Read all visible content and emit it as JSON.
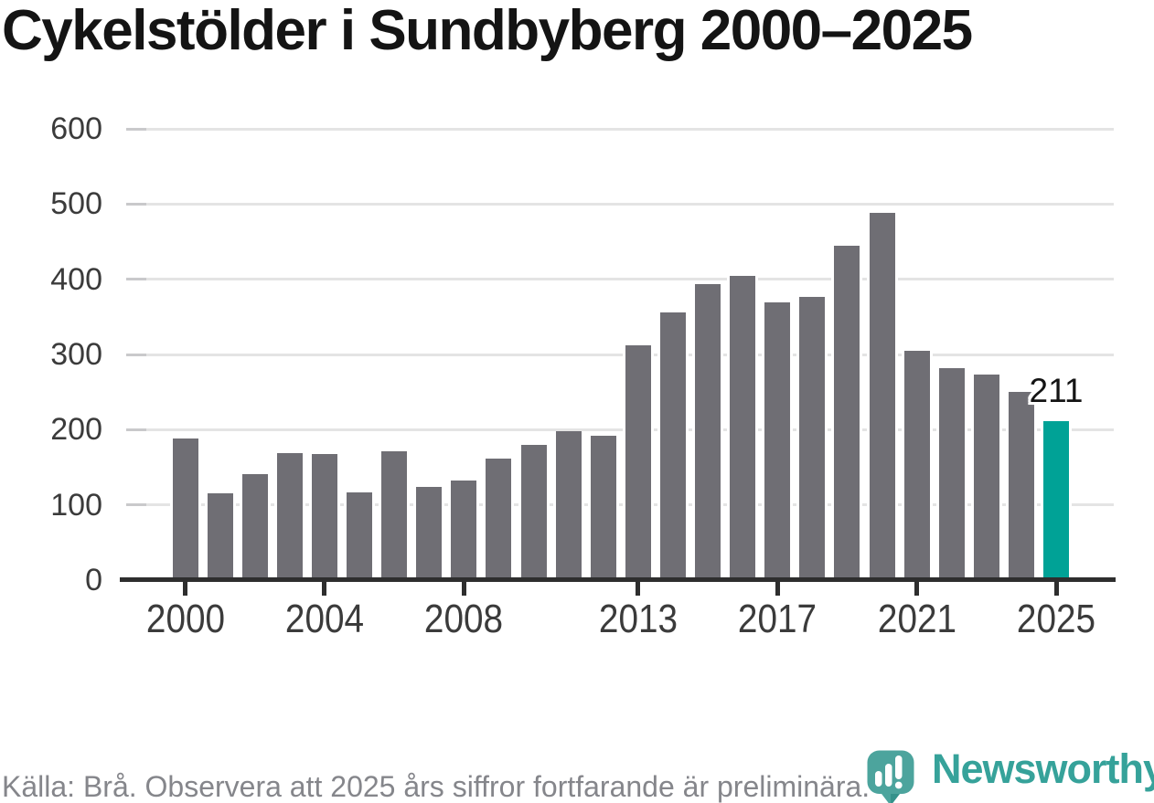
{
  "title": "Cykelstölder i Sundbyberg 2000–2025",
  "chart_data": {
    "type": "bar",
    "title": "Cykelstölder i Sundbyberg 2000–2025",
    "categories": [
      2000,
      2001,
      2002,
      2003,
      2004,
      2005,
      2006,
      2007,
      2008,
      2009,
      2010,
      2011,
      2012,
      2013,
      2014,
      2015,
      2016,
      2017,
      2018,
      2019,
      2020,
      2021,
      2022,
      2023,
      2024,
      2025
    ],
    "values": [
      188,
      115,
      141,
      169,
      168,
      117,
      171,
      124,
      132,
      161,
      180,
      198,
      192,
      312,
      356,
      394,
      404,
      369,
      377,
      445,
      488,
      305,
      282,
      273,
      250,
      211
    ],
    "xlabel": "",
    "ylabel": "",
    "ylim": [
      0,
      600
    ],
    "y_ticks": [
      0,
      100,
      200,
      300,
      400,
      500,
      600
    ],
    "x_tick_labels": [
      "2000",
      "2004",
      "2008",
      "2013",
      "2017",
      "2021",
      "2025"
    ],
    "grid": "horizontal",
    "legend": "none",
    "bar_color": "#6F6E74",
    "highlight": {
      "year": 2025,
      "color": "#00A296",
      "label": "211"
    }
  },
  "footer": {
    "source": "Källa: Brå. Observera att 2025 års siffror fortfarande är preliminära.",
    "logo_text": "Newsworthy",
    "logo_color": "#36A29A"
  }
}
